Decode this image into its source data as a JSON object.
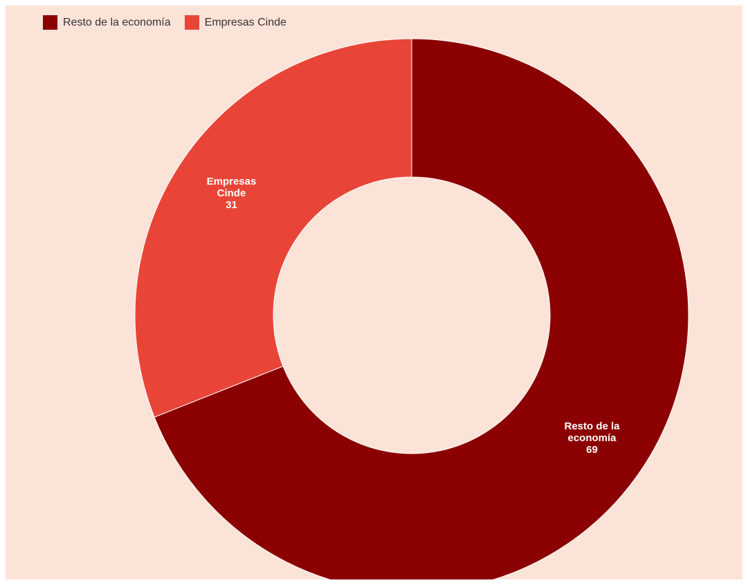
{
  "chart_data": {
    "type": "pie",
    "variant": "donut",
    "title": "",
    "legend_position": "top-left",
    "categories": [
      "Resto de la economía",
      "Empresas Cinde"
    ],
    "values": [
      69,
      31
    ],
    "colors": [
      "#8b0000",
      "#e84538"
    ],
    "slice_labels": [
      {
        "lines": [
          "Resto de la",
          "economía"
        ],
        "value": "69"
      },
      {
        "lines": [
          "Empresas",
          "Cinde"
        ],
        "value": "31"
      }
    ]
  },
  "legend": {
    "items": [
      {
        "label": "Resto de la economía",
        "color": "#8b0000"
      },
      {
        "label": "Empresas Cinde",
        "color": "#e84538"
      }
    ]
  },
  "background_color": "#fce3d8"
}
